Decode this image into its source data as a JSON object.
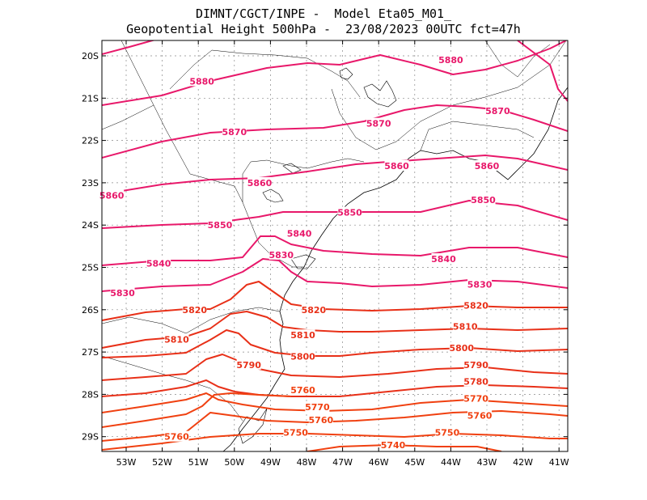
{
  "title": {
    "line1": "DIMNT/CGCT/INPE -  Model Eta05_M01_",
    "line2": "Geopotential Height 500hPa -  23/08/2023 00UTC fct=47h"
  },
  "colors": {
    "high": "#e8186a",
    "mid": "#e83018",
    "low": "#f04010",
    "coast": "#000000",
    "grid": "#888888"
  },
  "axes": {
    "lon": [
      "53W",
      "52W",
      "51W",
      "50W",
      "49W",
      "48W",
      "47W",
      "46W",
      "45W",
      "44W",
      "43W",
      "42W",
      "41W"
    ],
    "lat": [
      "20S",
      "21S",
      "22S",
      "23S",
      "24S",
      "25S",
      "26S",
      "27S",
      "28S",
      "29S"
    ]
  },
  "contours": [
    {
      "value": 5880,
      "labels": [
        {
          "text": "5880",
          "lon": -44.0,
          "lat": -20.1
        },
        {
          "text": "5880",
          "lon": -50.9,
          "lat": -20.6
        }
      ]
    },
    {
      "value": 5870,
      "labels": [
        {
          "text": "5870",
          "lon": -50.0,
          "lat": -21.8
        },
        {
          "text": "5870",
          "lon": -46.0,
          "lat": -21.6
        },
        {
          "text": "5870",
          "lon": -42.7,
          "lat": -21.3
        }
      ]
    },
    {
      "value": 5860,
      "labels": [
        {
          "text": "5860",
          "lon": -53.4,
          "lat": -23.3
        },
        {
          "text": "5860",
          "lon": -49.3,
          "lat": -23.0
        },
        {
          "text": "5860",
          "lon": -45.5,
          "lat": -22.6
        },
        {
          "text": "5860",
          "lon": -43.0,
          "lat": -22.6
        }
      ]
    },
    {
      "value": 5850,
      "labels": [
        {
          "text": "5850",
          "lon": -50.4,
          "lat": -24.0
        },
        {
          "text": "5850",
          "lon": -46.8,
          "lat": -23.7
        },
        {
          "text": "5850",
          "lon": -43.1,
          "lat": -23.4
        }
      ]
    },
    {
      "value": 5840,
      "labels": [
        {
          "text": "5840",
          "lon": -52.1,
          "lat": -24.9
        },
        {
          "text": "5840",
          "lon": -48.2,
          "lat": -24.2
        },
        {
          "text": "5840",
          "lon": -44.2,
          "lat": -24.8
        }
      ]
    },
    {
      "value": 5830,
      "labels": [
        {
          "text": "5830",
          "lon": -53.1,
          "lat": -25.6
        },
        {
          "text": "5830",
          "lon": -48.7,
          "lat": -24.7
        },
        {
          "text": "5830",
          "lon": -43.2,
          "lat": -25.4
        }
      ]
    },
    {
      "value": 5820,
      "labels": [
        {
          "text": "5820",
          "lon": -51.1,
          "lat": -26.0
        },
        {
          "text": "5820",
          "lon": -47.8,
          "lat": -26.0
        },
        {
          "text": "5820",
          "lon": -43.3,
          "lat": -25.9
        }
      ]
    },
    {
      "value": 5810,
      "labels": [
        {
          "text": "5810",
          "lon": -51.6,
          "lat": -26.7
        },
        {
          "text": "5810",
          "lon": -48.1,
          "lat": -26.6
        },
        {
          "text": "5810",
          "lon": -43.6,
          "lat": -26.4
        }
      ]
    },
    {
      "value": 5800,
      "labels": [
        {
          "text": "5800",
          "lon": -48.1,
          "lat": -27.1
        },
        {
          "text": "5800",
          "lon": -43.7,
          "lat": -26.9
        }
      ]
    },
    {
      "value": 5790,
      "labels": [
        {
          "text": "5790",
          "lon": -49.6,
          "lat": -27.3
        },
        {
          "text": "5790",
          "lon": -43.3,
          "lat": -27.3
        }
      ]
    },
    {
      "value": 5780,
      "labels": [
        {
          "text": "5780",
          "lon": -43.3,
          "lat": -27.7
        }
      ]
    },
    {
      "value": 5770,
      "labels": [
        {
          "text": "5770",
          "lon": -47.7,
          "lat": -28.3
        },
        {
          "text": "5770",
          "lon": -43.3,
          "lat": -28.1
        }
      ]
    },
    {
      "value": 5760,
      "labels": [
        {
          "text": "5760",
          "lon": -48.1,
          "lat": -27.9
        },
        {
          "text": "5760",
          "lon": -47.6,
          "lat": -28.6
        },
        {
          "text": "5760",
          "lon": -43.2,
          "lat": -28.5
        },
        {
          "text": "5760",
          "lon": -51.6,
          "lat": -29.0
        }
      ]
    },
    {
      "value": 5750,
      "labels": [
        {
          "text": "5750",
          "lon": -48.3,
          "lat": -28.9
        },
        {
          "text": "5750",
          "lon": -44.1,
          "lat": -28.9
        }
      ]
    },
    {
      "value": 5740,
      "labels": [
        {
          "text": "5740",
          "lon": -45.6,
          "lat": -29.2
        }
      ]
    }
  ]
}
